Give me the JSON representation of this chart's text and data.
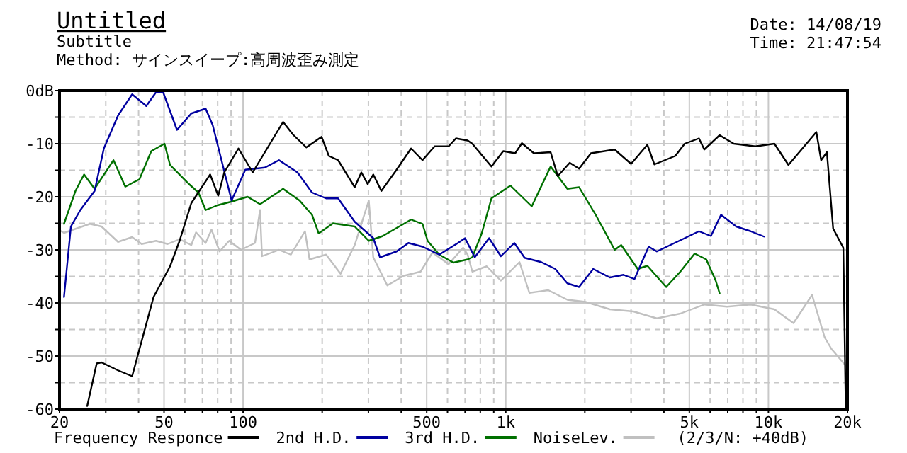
{
  "chart_data": {
    "type": "line",
    "title": "Untitled",
    "subtitle": "Subtitle",
    "annotations": [
      "Method: サインスイープ:高周波歪み測定",
      "Date: 14/08/19",
      "Time: 21:47:54",
      "(2/3/N: +40dB)"
    ],
    "log": "x",
    "grid": true,
    "legend": "bottom",
    "line_style": "solid",
    "marker": "none",
    "xlim": [
      20,
      20000
    ],
    "xticks": [
      20,
      {
        "value": 30,
        "label": null
      },
      {
        "value": 40,
        "label": null
      },
      50,
      {
        "value": 60,
        "label": null
      },
      {
        "value": 70,
        "label": null
      },
      {
        "value": 80,
        "label": null
      },
      {
        "value": 90,
        "label": null
      },
      100,
      {
        "value": 200,
        "label": null
      },
      {
        "value": 300,
        "label": null
      },
      {
        "value": 400,
        "label": null
      },
      500,
      {
        "value": 600,
        "label": null
      },
      {
        "value": 700,
        "label": null
      },
      {
        "value": 800,
        "label": null
      },
      {
        "value": 900,
        "label": null
      },
      {
        "value": 1000,
        "label": "1k"
      },
      {
        "value": 2000,
        "label": null
      },
      {
        "value": 3000,
        "label": null
      },
      {
        "value": 4000,
        "label": null
      },
      {
        "value": 5000,
        "label": "5k"
      },
      {
        "value": 6000,
        "label": null
      },
      {
        "value": 7000,
        "label": null
      },
      {
        "value": 8000,
        "label": null
      },
      {
        "value": 9000,
        "label": null
      },
      {
        "value": 10000,
        "label": "10k"
      },
      {
        "value": 20000,
        "label": "20k"
      }
    ],
    "ylim": [
      -60,
      0
    ],
    "yticks": [
      -60,
      {
        "value": -55,
        "label": null
      },
      -50,
      {
        "value": -45,
        "label": null
      },
      -40,
      {
        "value": -35,
        "label": null
      },
      -30,
      {
        "value": -25,
        "label": null
      },
      -20,
      {
        "value": -15,
        "label": null
      },
      -10,
      {
        "value": -5,
        "label": null
      },
      {
        "value": 0,
        "label": "0dB"
      }
    ],
    "series": [
      {
        "name": "Frequency Responce",
        "color": "#000000",
        "x": [
          25.5,
          27.7,
          28.9,
          33.4,
          37.8,
          45.6,
          52.7,
          57.3,
          63.5,
          74.9,
          80.4,
          84.8,
          96,
          108.8,
          142,
          155,
          174,
          199,
          212,
          230,
          266,
          282,
          298,
          313,
          336,
          384,
          436,
          482,
          536,
          606,
          646,
          716,
          746,
          882,
          978,
          1086,
          1152,
          1280,
          1482,
          1578,
          1752,
          1902,
          2110,
          2598,
          3000,
          3460,
          3680,
          4420,
          4800,
          5440,
          5700,
          6520,
          7380,
          8920,
          10540,
          11920,
          15220,
          15880,
          16700,
          17640,
          19280,
          19700
        ],
        "values": [
          -59.4,
          -51.4,
          -51.2,
          -52.7,
          -53.8,
          -38.9,
          -33.1,
          -28.3,
          -21.2,
          -15.8,
          -19.8,
          -15.4,
          -10.9,
          -15.4,
          -5.9,
          -8.3,
          -10.7,
          -8.7,
          -12.3,
          -13.1,
          -18.2,
          -15.4,
          -17.6,
          -15.8,
          -18.9,
          -14.9,
          -10.9,
          -13.1,
          -10.5,
          -10.5,
          -9,
          -9.4,
          -10,
          -14.3,
          -11.4,
          -11.8,
          -9.9,
          -11.8,
          -11.6,
          -16.1,
          -13.6,
          -14.7,
          -11.8,
          -11.1,
          -13.8,
          -10.2,
          -13.9,
          -12.3,
          -10,
          -9,
          -11.1,
          -8.4,
          -10,
          -10.5,
          -10,
          -14,
          -7.8,
          -13.1,
          -11.6,
          -26,
          -29.6,
          -60
        ]
      },
      {
        "name": "2nd H.D.",
        "color": "#0000a0",
        "x": [
          20.8,
          22.1,
          24,
          27.2,
          29.5,
          33.4,
          37.8,
          42.8,
          46.6,
          49.6,
          56,
          63.5,
          72,
          76.6,
          90.4,
          102,
          121,
          131,
          137,
          161,
          183,
          207,
          230,
          266,
          313,
          332,
          384,
          426,
          482,
          558,
          658,
          700,
          762,
          864,
          958,
          1078,
          1180,
          1364,
          1544,
          1716,
          1902,
          2152,
          2490,
          2806,
          3090,
          3500,
          3760,
          4800,
          5440,
          6040,
          6600,
          7540,
          8560,
          9620
        ],
        "values": [
          -38.9,
          -25.6,
          -22.5,
          -18.9,
          -10.9,
          -4.7,
          -0.7,
          -2.9,
          -0.3,
          -0.3,
          -7.4,
          -4.3,
          -3.4,
          -6.5,
          -20.7,
          -14.9,
          -14.5,
          -13.6,
          -13.1,
          -15.4,
          -19.2,
          -20.3,
          -20.3,
          -24.7,
          -27.8,
          -31.4,
          -30.3,
          -28.7,
          -29.4,
          -30.9,
          -28.7,
          -27.8,
          -31.4,
          -27.8,
          -31.2,
          -28.7,
          -31.5,
          -32.3,
          -33.6,
          -36.3,
          -37,
          -33.6,
          -35.2,
          -34.7,
          -35.5,
          -29.4,
          -30.3,
          -27.8,
          -26.5,
          -27.4,
          -23.4,
          -25.6,
          -26.5,
          -27.5
        ]
      },
      {
        "name": "3rd H.D.",
        "color": "#007000",
        "x": [
          20.8,
          23,
          24.8,
          27.2,
          32.1,
          35.6,
          40.3,
          44.7,
          50.2,
          52.7,
          62.2,
          67.6,
          72,
          79.9,
          90.4,
          104,
          116,
          142,
          164,
          183,
          194,
          220,
          266,
          301,
          340,
          436,
          482,
          504,
          558,
          632,
          716,
          746,
          810,
          882,
          1042,
          1256,
          1482,
          1716,
          1902,
          2200,
          2598,
          2752,
          3180,
          3460,
          4080,
          4620,
          5240,
          5800,
          6300,
          6520
        ],
        "values": [
          -25.1,
          -18.9,
          -15.8,
          -18.5,
          -13.1,
          -18.1,
          -16.7,
          -11.4,
          -10,
          -14,
          -17.6,
          -19.2,
          -22.5,
          -21.6,
          -20.9,
          -20,
          -21.4,
          -18.5,
          -20.7,
          -23.4,
          -26.9,
          -25,
          -25.6,
          -28.3,
          -27.4,
          -24.3,
          -25.1,
          -28.3,
          -30.9,
          -32.4,
          -31.8,
          -31.4,
          -26.9,
          -20.3,
          -17.9,
          -21.8,
          -14.3,
          -18.5,
          -18.2,
          -23.4,
          -30,
          -29.1,
          -33.6,
          -33,
          -37,
          -34.1,
          -30.7,
          -31.8,
          -35.8,
          -38.2
        ]
      },
      {
        "name": "NoiseLev.",
        "color": "#c0c0c0",
        "x": [
          20,
          20.8,
          26.1,
          28.9,
          33.4,
          37.8,
          41.1,
          46.6,
          51.6,
          57.3,
          63.5,
          66.2,
          72,
          75.8,
          81.4,
          88.5,
          98.2,
          111,
          116,
          118,
          137,
          152,
          172,
          179,
          207,
          235,
          266,
          301,
          313,
          354,
          408,
          474,
          526,
          606,
          688,
          716,
          746,
          846,
          958,
          1128,
          1230,
          1452,
          1716,
          2012,
          2490,
          3060,
          3760,
          4620,
          5700,
          6960,
          8560,
          10540,
          12460,
          14660,
          16380,
          17400,
          19700
        ],
        "values": [
          -26.3,
          -26.8,
          -25.1,
          -25.6,
          -28.5,
          -27.6,
          -28.9,
          -28.3,
          -28.9,
          -28,
          -29.1,
          -26.7,
          -28.7,
          -26.2,
          -30.3,
          -28.3,
          -30,
          -28.7,
          -22.5,
          -31.2,
          -30,
          -30.9,
          -26.5,
          -31.8,
          -30.9,
          -34.5,
          -29.1,
          -20.7,
          -31.4,
          -36.7,
          -34.9,
          -34.1,
          -30.5,
          -32.7,
          -29.6,
          -30.9,
          -34.1,
          -33.1,
          -35.8,
          -32.3,
          -38.1,
          -37.6,
          -39.4,
          -39.8,
          -41.2,
          -41.6,
          -42.9,
          -42,
          -40.3,
          -40.7,
          -40.3,
          -41.2,
          -43.8,
          -38.5,
          -46.5,
          -48.7,
          -51.8
        ]
      }
    ]
  }
}
